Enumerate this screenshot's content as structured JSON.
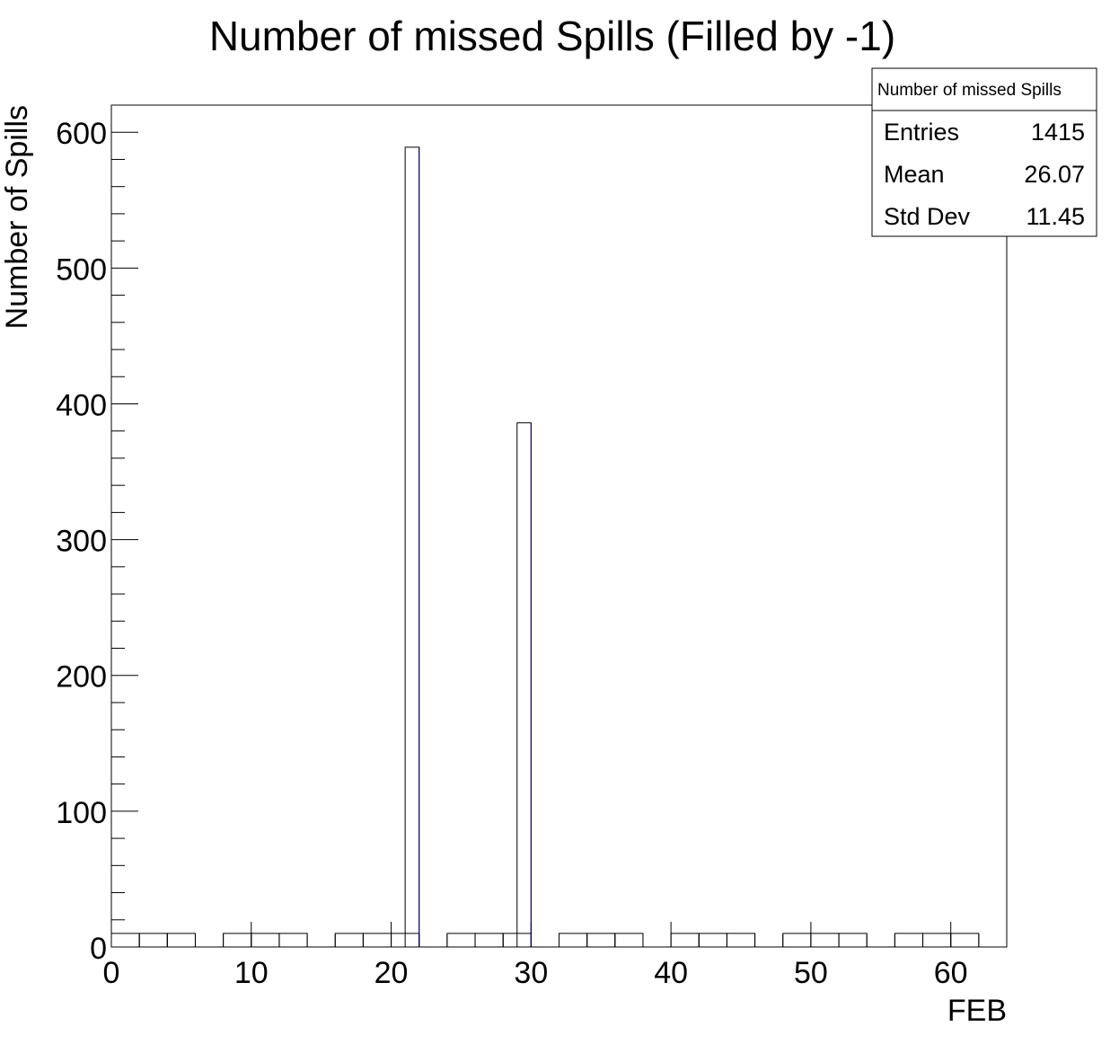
{
  "chart_data": {
    "type": "bar",
    "title": "Number of missed Spills (Filled by -1)",
    "xlabel": "FEB",
    "ylabel": "Number of Spills",
    "xlim": [
      0,
      64
    ],
    "ylim": [
      0,
      620
    ],
    "x_ticks": [
      0,
      10,
      20,
      30,
      40,
      50,
      60
    ],
    "y_ticks": [
      0,
      100,
      200,
      300,
      400,
      500,
      600
    ],
    "bin_width": 2,
    "bins": [
      {
        "x": 0,
        "value": 10
      },
      {
        "x": 2,
        "value": 10
      },
      {
        "x": 4,
        "value": 10
      },
      {
        "x": 6,
        "value": 0
      },
      {
        "x": 8,
        "value": 10
      },
      {
        "x": 10,
        "value": 10
      },
      {
        "x": 12,
        "value": 10
      },
      {
        "x": 14,
        "value": 0
      },
      {
        "x": 16,
        "value": 10
      },
      {
        "x": 18,
        "value": 10
      },
      {
        "x": 20,
        "value": 10
      },
      {
        "x": 22,
        "value": 0
      },
      {
        "x": 24,
        "value": 10
      },
      {
        "x": 26,
        "value": 10
      },
      {
        "x": 28,
        "value": 10
      },
      {
        "x": 30,
        "value": 0
      },
      {
        "x": 32,
        "value": 10
      },
      {
        "x": 34,
        "value": 10
      },
      {
        "x": 36,
        "value": 10
      },
      {
        "x": 38,
        "value": 0
      },
      {
        "x": 40,
        "value": 10
      },
      {
        "x": 42,
        "value": 10
      },
      {
        "x": 44,
        "value": 10
      },
      {
        "x": 46,
        "value": 0
      },
      {
        "x": 48,
        "value": 10
      },
      {
        "x": 50,
        "value": 10
      },
      {
        "x": 52,
        "value": 10
      },
      {
        "x": 54,
        "value": 0
      },
      {
        "x": 56,
        "value": 10
      },
      {
        "x": 58,
        "value": 10
      },
      {
        "x": 60,
        "value": 10
      },
      {
        "x": 62,
        "value": 0
      }
    ],
    "spikes": [
      {
        "x": 21,
        "width": 1,
        "value": 589
      },
      {
        "x": 29,
        "width": 1,
        "value": 386
      }
    ],
    "line_color": "#000080",
    "stats_box": {
      "name": "Number of missed Spills",
      "rows": [
        {
          "label": "Entries",
          "value": "1415"
        },
        {
          "label": "Mean",
          "value": "26.07"
        },
        {
          "label": "Std Dev",
          "value": "11.45"
        }
      ]
    },
    "grid": false,
    "legend": "top-right"
  }
}
